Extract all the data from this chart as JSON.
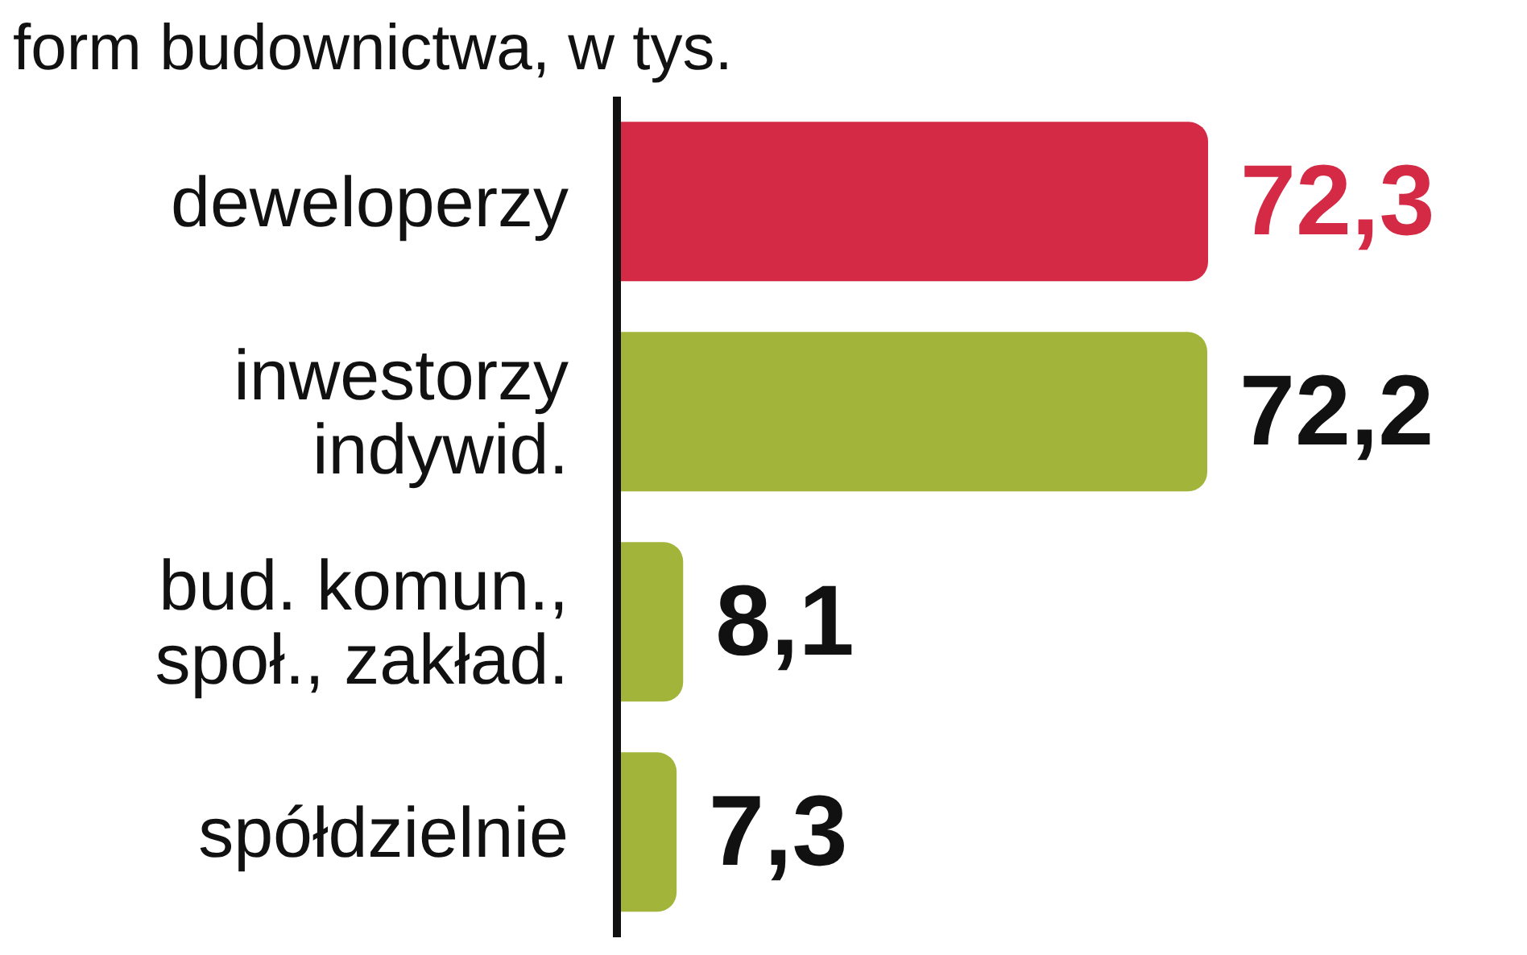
{
  "chart_data": {
    "type": "bar",
    "orientation": "horizontal",
    "title": "form budownictwa, w tys.",
    "categories": [
      "deweloperzy",
      "inwestorzy\nindywid.",
      "bud. komun.,\nspoł., zakład.",
      "spółdzielnie"
    ],
    "values": [
      72.3,
      72.2,
      8.1,
      7.3
    ],
    "colors": [
      "#d42a45",
      "#a2b43a",
      "#a2b43a",
      "#a2b43a"
    ],
    "value_labels": [
      "72,3",
      "72,2",
      "8,1",
      "7,3"
    ]
  }
}
